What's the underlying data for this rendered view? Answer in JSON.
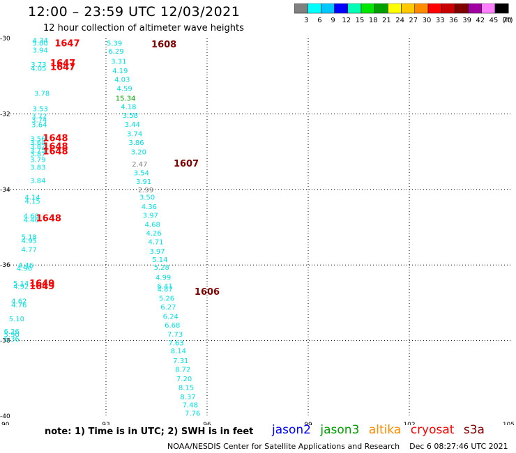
{
  "header": {
    "title": "12:00 – 23:59 UTC 12/03/2021",
    "subtitle": "12 hour collection of altimeter wave heights"
  },
  "colorbar": {
    "colors": [
      "#808080",
      "#00ffff",
      "#00c8ff",
      "#0000ff",
      "#00ffb4",
      "#00e600",
      "#00a000",
      "#ffff00",
      "#ffc800",
      "#ff8c00",
      "#ff0000",
      "#c80000",
      "#800000",
      "#a000a0",
      "#ff80ff",
      "#000000"
    ],
    "labels": [
      "3",
      "6",
      "9",
      "12",
      "15",
      "18",
      "21",
      "24",
      "27",
      "30",
      "33",
      "36",
      "39",
      "42",
      "45",
      "70"
    ],
    "unit": "(ft)"
  },
  "chart_data": {
    "type": "scatter",
    "xlim": [
      90,
      105
    ],
    "ylim": [
      -40,
      -30
    ],
    "x_ticks": [
      "90",
      "93",
      "96",
      "99",
      "102",
      "105"
    ],
    "y_ticks": [
      "-30",
      "-32",
      "-34",
      "-36",
      "-38",
      "-40"
    ],
    "grid": true,
    "points": [
      {
        "x": 91.05,
        "y": -30.05,
        "label": "4.34",
        "color": "#00e0e0"
      },
      {
        "x": 91.05,
        "y": -30.12,
        "label": "5.00",
        "color": "#00e0e0"
      },
      {
        "x": 91.05,
        "y": -30.3,
        "label": "3.94",
        "color": "#00e0e0"
      },
      {
        "x": 91.0,
        "y": -30.68,
        "label": "3.73",
        "color": "#00e0e0"
      },
      {
        "x": 91.0,
        "y": -30.78,
        "label": "4.05",
        "color": "#00e0e0"
      },
      {
        "x": 91.1,
        "y": -31.45,
        "label": "3.78",
        "color": "#00e0e0"
      },
      {
        "x": 91.05,
        "y": -31.85,
        "label": "3.53",
        "color": "#00e0e0"
      },
      {
        "x": 91.02,
        "y": -32.05,
        "label": "3.72",
        "color": "#00e0e0"
      },
      {
        "x": 91.02,
        "y": -32.15,
        "label": "3.74",
        "color": "#00e0e0"
      },
      {
        "x": 91.02,
        "y": -32.28,
        "label": "3.64",
        "color": "#00e0e0"
      },
      {
        "x": 90.98,
        "y": -32.65,
        "label": "3.56",
        "color": "#00e0e0"
      },
      {
        "x": 90.98,
        "y": -32.75,
        "label": "3.64",
        "color": "#00e0e0"
      },
      {
        "x": 90.98,
        "y": -32.85,
        "label": "3.82",
        "color": "#00e0e0"
      },
      {
        "x": 90.98,
        "y": -32.95,
        "label": "3.75",
        "color": "#00e0e0"
      },
      {
        "x": 90.98,
        "y": -33.05,
        "label": "3.87",
        "color": "#00e0e0"
      },
      {
        "x": 90.98,
        "y": -33.2,
        "label": "3.79",
        "color": "#00e0e0"
      },
      {
        "x": 90.98,
        "y": -33.4,
        "label": "3.83",
        "color": "#00e0e0"
      },
      {
        "x": 90.98,
        "y": -33.75,
        "label": "3.84",
        "color": "#00e0e0"
      },
      {
        "x": 90.82,
        "y": -34.2,
        "label": "4.14",
        "color": "#00e0e0"
      },
      {
        "x": 90.82,
        "y": -34.3,
        "label": "4.15",
        "color": "#00e0e0"
      },
      {
        "x": 90.78,
        "y": -34.7,
        "label": "4.68",
        "color": "#00e0e0"
      },
      {
        "x": 90.78,
        "y": -34.8,
        "label": "4.46",
        "color": "#00e0e0"
      },
      {
        "x": 90.72,
        "y": -35.25,
        "label": "5.18",
        "color": "#00e0e0"
      },
      {
        "x": 90.72,
        "y": -35.35,
        "label": "4.95",
        "color": "#00e0e0"
      },
      {
        "x": 90.72,
        "y": -35.58,
        "label": "4.77",
        "color": "#00e0e0"
      },
      {
        "x": 90.62,
        "y": -36.0,
        "label": "4.46",
        "color": "#00e0e0"
      },
      {
        "x": 90.58,
        "y": -36.08,
        "label": "4.96",
        "color": "#00e0e0"
      },
      {
        "x": 90.48,
        "y": -36.48,
        "label": "5.14",
        "color": "#00e0e0"
      },
      {
        "x": 90.48,
        "y": -36.56,
        "label": "4.92",
        "color": "#00e0e0"
      },
      {
        "x": 90.42,
        "y": -36.95,
        "label": "4.62",
        "color": "#00e0e0"
      },
      {
        "x": 90.42,
        "y": -37.05,
        "label": "4.76",
        "color": "#00e0e0"
      },
      {
        "x": 90.35,
        "y": -37.42,
        "label": "5.10",
        "color": "#00e0e0"
      },
      {
        "x": 90.2,
        "y": -37.75,
        "label": "6.26",
        "color": "#00e0e0"
      },
      {
        "x": 90.2,
        "y": -37.83,
        "label": "5.90",
        "color": "#00e0e0"
      },
      {
        "x": 90.2,
        "y": -37.95,
        "label": "5.36",
        "color": "#00e0e0"
      },
      {
        "x": 93.25,
        "y": -30.12,
        "label": "5.39",
        "color": "#00e0e0"
      },
      {
        "x": 93.3,
        "y": -30.33,
        "label": "6.29",
        "color": "#00e0e0"
      },
      {
        "x": 93.38,
        "y": -30.6,
        "label": "3.31",
        "color": "#00e0e0"
      },
      {
        "x": 93.42,
        "y": -30.85,
        "label": "4.19",
        "color": "#00e0e0"
      },
      {
        "x": 93.48,
        "y": -31.08,
        "label": "4.03",
        "color": "#00e0e0"
      },
      {
        "x": 93.55,
        "y": -31.32,
        "label": "4.59",
        "color": "#00e0e0"
      },
      {
        "x": 93.58,
        "y": -31.58,
        "label": "15.34",
        "color": "#00a000"
      },
      {
        "x": 93.67,
        "y": -31.8,
        "label": "4.18",
        "color": "#00e0e0"
      },
      {
        "x": 93.72,
        "y": -32.03,
        "label": "3.58",
        "color": "#00e0e0"
      },
      {
        "x": 93.78,
        "y": -32.27,
        "label": "3.44",
        "color": "#00e0e0"
      },
      {
        "x": 93.85,
        "y": -32.52,
        "label": "3.74",
        "color": "#00e0e0"
      },
      {
        "x": 93.9,
        "y": -32.75,
        "label": "3.86",
        "color": "#00e0e0"
      },
      {
        "x": 93.97,
        "y": -33.0,
        "label": "3.20",
        "color": "#00e0e0"
      },
      {
        "x": 94.0,
        "y": -33.32,
        "label": "2.47",
        "color": "#808080"
      },
      {
        "x": 94.05,
        "y": -33.55,
        "label": "3.54",
        "color": "#00e0e0"
      },
      {
        "x": 94.12,
        "y": -33.78,
        "label": "3.91",
        "color": "#00e0e0"
      },
      {
        "x": 94.18,
        "y": -34.0,
        "label": "2.99",
        "color": "#808080"
      },
      {
        "x": 94.22,
        "y": -34.2,
        "label": "3.50",
        "color": "#00e0e0"
      },
      {
        "x": 94.28,
        "y": -34.45,
        "label": "4.36",
        "color": "#00e0e0"
      },
      {
        "x": 94.32,
        "y": -34.68,
        "label": "3.97",
        "color": "#00e0e0"
      },
      {
        "x": 94.38,
        "y": -34.92,
        "label": "4.68",
        "color": "#00e0e0"
      },
      {
        "x": 94.42,
        "y": -35.15,
        "label": "4.26",
        "color": "#00e0e0"
      },
      {
        "x": 94.48,
        "y": -35.38,
        "label": "4.71",
        "color": "#00e0e0"
      },
      {
        "x": 94.52,
        "y": -35.63,
        "label": "3.97",
        "color": "#00e0e0"
      },
      {
        "x": 94.6,
        "y": -35.85,
        "label": "5.14",
        "color": "#00e0e0"
      },
      {
        "x": 94.65,
        "y": -36.05,
        "label": "5.28",
        "color": "#00e0e0"
      },
      {
        "x": 94.7,
        "y": -36.32,
        "label": "4.99",
        "color": "#00e0e0"
      },
      {
        "x": 94.75,
        "y": -36.55,
        "label": "6.41",
        "color": "#00e0e0"
      },
      {
        "x": 94.75,
        "y": -36.63,
        "label": "4.87",
        "color": "#00e0e0"
      },
      {
        "x": 94.8,
        "y": -36.87,
        "label": "5.26",
        "color": "#00e0e0"
      },
      {
        "x": 94.85,
        "y": -37.1,
        "label": "6.27",
        "color": "#00e0e0"
      },
      {
        "x": 94.92,
        "y": -37.35,
        "label": "6.24",
        "color": "#00e0e0"
      },
      {
        "x": 94.97,
        "y": -37.58,
        "label": "6.68",
        "color": "#00e0e0"
      },
      {
        "x": 95.05,
        "y": -37.82,
        "label": "7.73",
        "color": "#00e0e0"
      },
      {
        "x": 95.08,
        "y": -38.05,
        "label": "7.63",
        "color": "#00e0e0"
      },
      {
        "x": 95.15,
        "y": -38.27,
        "label": "8.14",
        "color": "#00e0e0"
      },
      {
        "x": 95.22,
        "y": -38.52,
        "label": "7.31",
        "color": "#00e0e0"
      },
      {
        "x": 95.28,
        "y": -38.75,
        "label": "8.72",
        "color": "#00e0e0"
      },
      {
        "x": 95.32,
        "y": -39.0,
        "label": "7.20",
        "color": "#00e0e0"
      },
      {
        "x": 95.38,
        "y": -39.23,
        "label": "8.15",
        "color": "#00e0e0"
      },
      {
        "x": 95.43,
        "y": -39.48,
        "label": "8.37",
        "color": "#00e0e0"
      },
      {
        "x": 95.5,
        "y": -39.7,
        "label": "7.48",
        "color": "#00e0e0"
      },
      {
        "x": 95.57,
        "y": -39.92,
        "label": "7.76",
        "color": "#00e0e0"
      }
    ],
    "pass_labels": [
      {
        "x": 91.85,
        "y": -30.12,
        "label": "1647",
        "color": "#ff0000"
      },
      {
        "x": 91.72,
        "y": -30.65,
        "label": "1647",
        "color": "#ff0000"
      },
      {
        "x": 91.72,
        "y": -30.75,
        "label": "1647",
        "color": "#ff0000"
      },
      {
        "x": 94.72,
        "y": -30.15,
        "label": "1608",
        "color": "#800000"
      },
      {
        "x": 91.5,
        "y": -32.63,
        "label": "1648",
        "color": "#ff0000"
      },
      {
        "x": 91.5,
        "y": -32.85,
        "label": "1648",
        "color": "#ff0000"
      },
      {
        "x": 91.5,
        "y": -32.98,
        "label": "1648",
        "color": "#ff0000"
      },
      {
        "x": 95.38,
        "y": -33.3,
        "label": "1607",
        "color": "#800000"
      },
      {
        "x": 91.3,
        "y": -34.75,
        "label": "1648",
        "color": "#ff0000"
      },
      {
        "x": 91.1,
        "y": -36.48,
        "label": "1649",
        "color": "#ff0000"
      },
      {
        "x": 91.1,
        "y": -36.55,
        "label": "1649",
        "color": "#ff0000"
      },
      {
        "x": 96.0,
        "y": -36.7,
        "label": "1606",
        "color": "#800000"
      }
    ]
  },
  "note": "note:  1) Time is in UTC; 2) SWH is in feet",
  "legend": [
    {
      "name": "jason2",
      "color": "#0000ff"
    },
    {
      "name": "jason3",
      "color": "#00a000"
    },
    {
      "name": "altika",
      "color": "#ff8c00"
    },
    {
      "name": "cryosat",
      "color": "#ff0000"
    },
    {
      "name": "s3a",
      "color": "#800000"
    }
  ],
  "footer": {
    "credit": "NOAA/NESDIS Center for Satellite Applications and Research",
    "timestamp": "Dec  6 08:27:46 UTC 2021"
  }
}
